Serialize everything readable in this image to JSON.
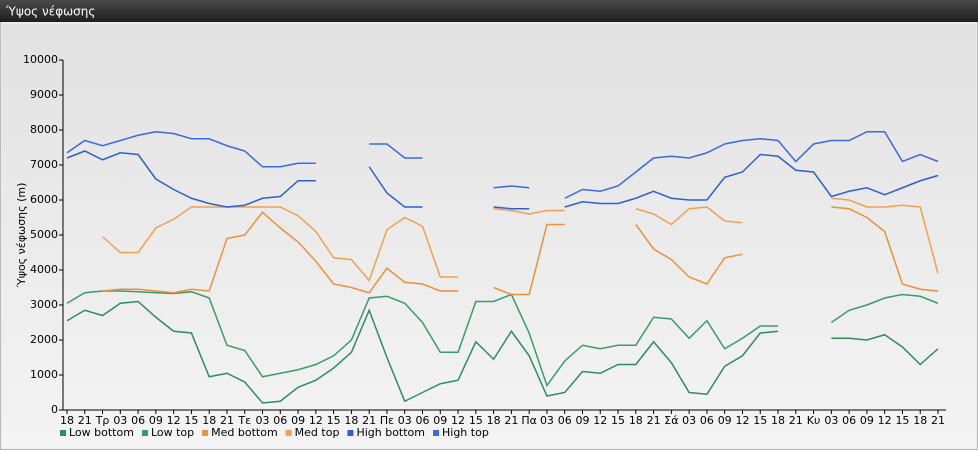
{
  "chart_data": {
    "type": "line",
    "title": "Ύψος νέφωσης",
    "y_label": "Ύψος νέφωσης (m)",
    "categories": [
      "18",
      "21",
      "Τρ",
      "03",
      "06",
      "09",
      "12",
      "15",
      "18",
      "21",
      "Τε",
      "03",
      "06",
      "09",
      "12",
      "15",
      "18",
      "21",
      "Πε",
      "03",
      "06",
      "09",
      "12",
      "15",
      "18",
      "21",
      "Πα",
      "03",
      "06",
      "09",
      "12",
      "15",
      "18",
      "21",
      "Σά",
      "03",
      "06",
      "09",
      "12",
      "15",
      "18",
      "21",
      "Κυ",
      "03",
      "06",
      "09",
      "12",
      "15",
      "18",
      "21"
    ],
    "ylim": [
      0,
      10000
    ],
    "yticks": [
      0,
      1000,
      2000,
      3000,
      4000,
      5000,
      6000,
      7000,
      8000,
      9000,
      10000
    ],
    "legend": "bottom-left",
    "series": [
      {
        "name": "Low bottom",
        "color": "#2e8b63",
        "values": [
          2550,
          2850,
          2700,
          3050,
          3100,
          2650,
          2250,
          2200,
          950,
          1050,
          800,
          200,
          250,
          650,
          850,
          1200,
          1650,
          2850,
          1500,
          250,
          500,
          750,
          850,
          1950,
          1450,
          2250,
          1550,
          400,
          500,
          1100,
          1050,
          1300,
          1300,
          1950,
          1350,
          500,
          450,
          1250,
          1550,
          2200,
          2250,
          null,
          null,
          2050,
          2050,
          2000,
          2150,
          1800,
          1300,
          1750
        ]
      },
      {
        "name": "Low top",
        "color": "#3a9a6e",
        "values": [
          3050,
          3350,
          3400,
          3400,
          3380,
          3350,
          3330,
          3380,
          3200,
          1850,
          1700,
          950,
          1050,
          1150,
          1300,
          1550,
          2000,
          3200,
          3250,
          3050,
          2500,
          1650,
          1650,
          3100,
          3100,
          3300,
          2200,
          700,
          1400,
          1850,
          1750,
          1850,
          1850,
          2650,
          2600,
          2050,
          2550,
          1750,
          2050,
          2400,
          2400,
          null,
          null,
          2500,
          2850,
          3000,
          3200,
          3300,
          3250,
          3050
        ]
      },
      {
        "name": "Med bottom",
        "color": "#e8923a",
        "values": [
          null,
          null,
          3400,
          3450,
          3450,
          3400,
          3350,
          3450,
          3400,
          4900,
          5000,
          5650,
          5200,
          4800,
          4250,
          3600,
          3500,
          3350,
          4050,
          3650,
          3600,
          3400,
          3400,
          null,
          3500,
          3300,
          3300,
          5300,
          5300,
          null,
          null,
          null,
          5300,
          4600,
          4300,
          3800,
          3600,
          4350,
          4450,
          null,
          null,
          null,
          null,
          5800,
          5750,
          5500,
          5100,
          3600,
          3450,
          3400
        ]
      },
      {
        "name": "Med top",
        "color": "#f0a050",
        "values": [
          null,
          null,
          4950,
          4500,
          4500,
          5200,
          5450,
          5800,
          5800,
          5800,
          5800,
          5800,
          5800,
          5550,
          5100,
          4350,
          4300,
          3700,
          5150,
          5500,
          5250,
          3800,
          3800,
          null,
          5750,
          5700,
          5600,
          5700,
          5700,
          null,
          null,
          null,
          5750,
          5600,
          5300,
          5750,
          5800,
          5400,
          5350,
          null,
          null,
          null,
          null,
          6050,
          6000,
          5800,
          5800,
          5850,
          5800,
          3900
        ]
      },
      {
        "name": "High bottom",
        "color": "#2f5fd0",
        "values": [
          7200,
          7400,
          7150,
          7350,
          7300,
          6600,
          6300,
          6050,
          5900,
          5800,
          5850,
          6050,
          6100,
          6550,
          6550,
          null,
          null,
          6950,
          6200,
          5800,
          5800,
          null,
          null,
          null,
          5800,
          5750,
          5750,
          null,
          5800,
          5950,
          5900,
          5900,
          6050,
          6250,
          6050,
          6000,
          6000,
          6650,
          6800,
          7300,
          7250,
          6850,
          6800,
          6100,
          6250,
          6350,
          6150,
          6350,
          6550,
          6700
        ]
      },
      {
        "name": "High top",
        "color": "#3a6ae0",
        "values": [
          7350,
          7700,
          7550,
          7700,
          7850,
          7950,
          7900,
          7750,
          7750,
          7550,
          7400,
          6950,
          6950,
          7050,
          7050,
          null,
          null,
          7600,
          7600,
          7200,
          7200,
          null,
          null,
          null,
          6350,
          6400,
          6350,
          null,
          6050,
          6300,
          6250,
          6400,
          6800,
          7200,
          7250,
          7200,
          7350,
          7600,
          7700,
          7750,
          7700,
          7100,
          7600,
          7700,
          7700,
          7950,
          7950,
          7100,
          7300,
          7100
        ]
      }
    ]
  }
}
